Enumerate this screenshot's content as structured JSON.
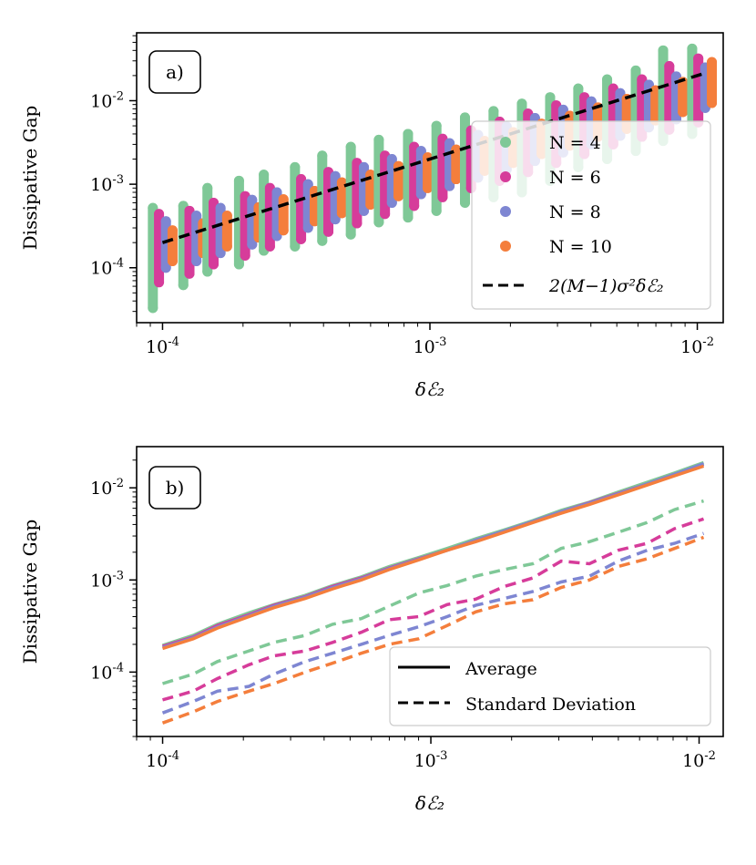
{
  "chart_data": [
    {
      "panel": "a)",
      "type": "scatter",
      "xscale": "log",
      "yscale": "log",
      "xlim": [
        8e-05,
        0.0125
      ],
      "ylim": [
        2.2e-05,
        0.065
      ],
      "xlabel": "δℰ₂",
      "ylabel": "Dissipative Gap",
      "xticks": [
        {
          "value": 0.0001,
          "base": "10",
          "exp": "-4"
        },
        {
          "value": 0.001,
          "base": "10",
          "exp": "-3"
        },
        {
          "value": 0.01,
          "base": "10",
          "exp": "-2"
        }
      ],
      "yticks": [
        {
          "value": 0.0001,
          "base": "10",
          "exp": "-4"
        },
        {
          "value": 0.001,
          "base": "10",
          "exp": "-3"
        },
        {
          "value": 0.01,
          "base": "10",
          "exp": "-2"
        }
      ],
      "x_points": [
        0.0001,
        0.00013,
        0.00016,
        0.00021,
        0.00026,
        0.00034,
        0.00043,
        0.00055,
        0.0007,
        0.0009,
        0.00115,
        0.00147,
        0.00188,
        0.0024,
        0.00306,
        0.0039,
        0.005,
        0.0064,
        0.0081,
        0.0104
      ],
      "dodge_factors": [
        0.92,
        0.97,
        1.03,
        1.09
      ],
      "series": [
        {
          "name": "N = 4",
          "color": "#7fc897",
          "low": [
            3.3e-05,
            6.2e-05,
            9e-05,
            0.00011,
            0.00016,
            0.00018,
            0.00021,
            0.00025,
            0.00035,
            0.0004,
            0.00048,
            0.0006,
            0.0007,
            0.0008,
            0.0011,
            0.0016,
            0.002,
            0.0025,
            0.0033,
            0.004
          ],
          "high": [
            0.00052,
            0.00055,
            0.0009,
            0.0011,
            0.0013,
            0.0016,
            0.0022,
            0.0028,
            0.0034,
            0.004,
            0.005,
            0.0063,
            0.0075,
            0.0092,
            0.011,
            0.014,
            0.018,
            0.023,
            0.04,
            0.042
          ]
        },
        {
          "name": "N = 6",
          "color": "#d63c9a",
          "low": [
            6.7e-05,
            8.5e-05,
            0.00011,
            0.00014,
            0.00018,
            0.00022,
            0.00027,
            0.00034,
            0.00044,
            0.00055,
            0.0007,
            0.0009,
            0.0011,
            0.0014,
            0.0018,
            0.0023,
            0.003,
            0.0037,
            0.0045,
            0.0055
          ],
          "high": [
            0.00044,
            0.00048,
            0.0006,
            0.00072,
            0.0009,
            0.00115,
            0.0014,
            0.0018,
            0.0022,
            0.0028,
            0.0035,
            0.0044,
            0.0056,
            0.007,
            0.0088,
            0.011,
            0.014,
            0.018,
            0.026,
            0.032
          ]
        },
        {
          "name": "N = 8",
          "color": "#7e86d2",
          "low": [
            0.0001,
            0.00012,
            0.00015,
            0.00019,
            0.00024,
            0.0003,
            0.00038,
            0.00048,
            0.0006,
            0.00076,
            0.00095,
            0.0012,
            0.0015,
            0.0019,
            0.0024,
            0.003,
            0.0038,
            0.0048,
            0.006,
            0.0082
          ],
          "high": [
            0.00036,
            0.00042,
            0.00052,
            0.00065,
            0.0008,
            0.001,
            0.00125,
            0.0016,
            0.002,
            0.0025,
            0.0031,
            0.0039,
            0.0049,
            0.0062,
            0.0078,
            0.0098,
            0.0123,
            0.0155,
            0.0195,
            0.025
          ]
        },
        {
          "name": "N = 10",
          "color": "#f47e3c",
          "low": [
            0.00012,
            0.00015,
            0.00018,
            0.00023,
            0.00028,
            0.00036,
            0.00045,
            0.00057,
            0.00072,
            0.0009,
            0.00115,
            0.00145,
            0.0018,
            0.0023,
            0.0029,
            0.0037,
            0.0046,
            0.0058,
            0.0073,
            0.0094
          ],
          "high": [
            0.00028,
            0.00034,
            0.00042,
            0.00053,
            0.00066,
            0.00083,
            0.00105,
            0.0013,
            0.00165,
            0.0021,
            0.0026,
            0.0033,
            0.0042,
            0.0053,
            0.0066,
            0.0083,
            0.0105,
            0.0133,
            0.0168,
            0.029
          ]
        }
      ],
      "fit_line": {
        "name": "2(M−1)σ²δℰ₂",
        "color": "#000000",
        "style": "dashed",
        "x": [
          0.0001,
          0.0104
        ],
        "y": [
          0.0002,
          0.0208
        ]
      },
      "legend": {
        "location": "lower-right",
        "entries": [
          "N = 4",
          "N = 6",
          "N = 8",
          "N = 10",
          "2(M−1)σ²δℰ₂"
        ]
      }
    },
    {
      "panel": "b)",
      "type": "line",
      "xscale": "log",
      "yscale": "log",
      "xlim": [
        8e-05,
        0.0123
      ],
      "ylim": [
        2e-05,
        0.028
      ],
      "xlabel": "δℰ₂",
      "ylabel": "Dissipative Gap",
      "xticks": [
        {
          "value": 0.0001,
          "base": "10",
          "exp": "-4"
        },
        {
          "value": 0.001,
          "base": "10",
          "exp": "-3"
        },
        {
          "value": 0.01,
          "base": "10",
          "exp": "-2"
        }
      ],
      "yticks": [
        {
          "value": 0.0001,
          "base": "10",
          "exp": "-4"
        },
        {
          "value": 0.001,
          "base": "10",
          "exp": "-3"
        },
        {
          "value": 0.01,
          "base": "10",
          "exp": "-2"
        }
      ],
      "x": [
        0.0001,
        0.00013,
        0.00016,
        0.00021,
        0.00026,
        0.00034,
        0.00043,
        0.00055,
        0.0007,
        0.0009,
        0.00115,
        0.00147,
        0.00188,
        0.0024,
        0.00306,
        0.0039,
        0.005,
        0.0064,
        0.0081,
        0.0104
      ],
      "series": [
        {
          "name": "N = 4",
          "color": "#7fc897",
          "average": [
            0.000195,
            0.00025,
            0.00033,
            0.00044,
            0.00054,
            0.00068,
            0.00087,
            0.00108,
            0.0014,
            0.00175,
            0.0022,
            0.0028,
            0.0035,
            0.0044,
            0.0057,
            0.007,
            0.009,
            0.0115,
            0.0145,
            0.0188
          ],
          "std": [
            7.5e-05,
            9.5e-05,
            0.00013,
            0.00017,
            0.00021,
            0.00025,
            0.00033,
            0.00038,
            0.00052,
            0.00072,
            0.00087,
            0.0011,
            0.0013,
            0.0015,
            0.0022,
            0.0026,
            0.0033,
            0.0042,
            0.0058,
            0.0072
          ]
        },
        {
          "name": "N = 6",
          "color": "#d63c9a",
          "average": [
            0.00019,
            0.00024,
            0.00032,
            0.00042,
            0.00053,
            0.00066,
            0.00085,
            0.00105,
            0.00135,
            0.0017,
            0.0021,
            0.0027,
            0.0034,
            0.0043,
            0.0055,
            0.0069,
            0.0087,
            0.011,
            0.014,
            0.018
          ],
          "std": [
            5e-05,
            6.2e-05,
            8.5e-05,
            0.00012,
            0.00015,
            0.00017,
            0.00021,
            0.00027,
            0.00037,
            0.0004,
            0.00054,
            0.00062,
            0.00085,
            0.00105,
            0.0016,
            0.0015,
            0.0021,
            0.0025,
            0.0036,
            0.0046
          ]
        },
        {
          "name": "N = 8",
          "color": "#7e86d2",
          "average": [
            0.000185,
            0.000235,
            0.00031,
            0.00041,
            0.00052,
            0.00065,
            0.00083,
            0.00103,
            0.00133,
            0.00168,
            0.0021,
            0.0027,
            0.0034,
            0.0043,
            0.0055,
            0.0068,
            0.0086,
            0.011,
            0.014,
            0.0183
          ],
          "std": [
            3.6e-05,
            4.8e-05,
            6.2e-05,
            7e-05,
            9.5e-05,
            0.00013,
            0.00016,
            0.0002,
            0.00025,
            0.00031,
            0.0004,
            0.00053,
            0.00063,
            0.00075,
            0.00095,
            0.0011,
            0.0016,
            0.0021,
            0.0025,
            0.0032
          ]
        },
        {
          "name": "N = 10",
          "color": "#f47e3c",
          "average": [
            0.00018,
            0.00023,
            0.0003,
            0.0004,
            0.0005,
            0.00063,
            0.0008,
            0.001,
            0.0013,
            0.00165,
            0.0021,
            0.0026,
            0.0033,
            0.0042,
            0.0053,
            0.0066,
            0.0084,
            0.0107,
            0.0135,
            0.0172
          ],
          "std": [
            2.8e-05,
            3.7e-05,
            4.8e-05,
            6.2e-05,
            7.5e-05,
            0.0001,
            0.000125,
            0.00016,
            0.0002,
            0.00023,
            0.00032,
            0.00045,
            0.00055,
            0.00061,
            0.00083,
            0.001,
            0.0014,
            0.0017,
            0.0022,
            0.0029
          ]
        }
      ],
      "legend": {
        "location": "lower-right",
        "entries": [
          "Average",
          "Standard Deviation"
        ]
      }
    }
  ]
}
